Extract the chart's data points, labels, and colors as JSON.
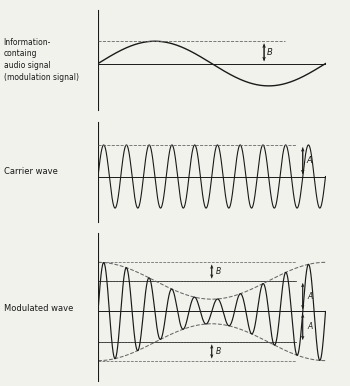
{
  "bg_color": "#f2f2ed",
  "line_color": "#1a1a1a",
  "dashed_color": "#666666",
  "label_color": "#1a1a1a",
  "panel1_label": "Information-\ncontaing\naudio signal\n(modulation signal)",
  "panel2_label": "Carrier wave",
  "panel3_label": "Modulated wave",
  "carrier_freq": 10,
  "modulation_freq": 1,
  "carrier_amp": 1.0,
  "modulation_amp": 0.6,
  "annotation_A": "A",
  "annotation_B": "B",
  "fig_width": 3.5,
  "fig_height": 3.86,
  "dpi": 100
}
